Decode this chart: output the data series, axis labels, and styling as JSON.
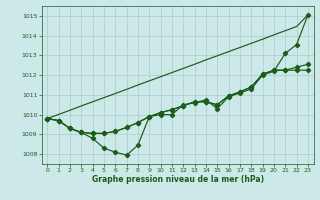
{
  "xlabel": "Graphe pression niveau de la mer (hPa)",
  "bg_color": "#cce8e8",
  "grid_color": "#aacccc",
  "line_color": "#1a5c1a",
  "ylim": [
    1007.5,
    1015.5
  ],
  "xlim": [
    -0.5,
    23.5
  ],
  "yticks": [
    1008,
    1009,
    1010,
    1011,
    1012,
    1013,
    1014,
    1015
  ],
  "xticks": [
    0,
    1,
    2,
    3,
    4,
    5,
    6,
    7,
    8,
    9,
    10,
    11,
    12,
    13,
    14,
    15,
    16,
    17,
    18,
    19,
    20,
    21,
    22,
    23
  ],
  "series_min": [
    1009.8,
    1009.7,
    1009.3,
    1009.1,
    1008.8,
    1008.3,
    1008.1,
    1007.95,
    1008.45,
    1009.9,
    1010.0,
    1010.0,
    1010.5,
    1010.6,
    1010.75,
    1010.3,
    1010.9,
    1011.1,
    1011.3,
    1012.0,
    1012.2,
    1013.1,
    1013.55,
    1015.05
  ],
  "series_max": [
    1009.8,
    1009.7,
    1009.3,
    1009.1,
    1009.05,
    1009.05,
    1009.15,
    1009.35,
    1009.6,
    1009.9,
    1010.1,
    1010.25,
    1010.45,
    1010.65,
    1010.65,
    1010.5,
    1010.95,
    1011.15,
    1011.4,
    1012.05,
    1012.25,
    1012.25,
    1012.4,
    1012.55
  ],
  "series_mean": [
    1009.8,
    1009.7,
    1009.3,
    1009.1,
    1009.05,
    1009.05,
    1009.15,
    1009.35,
    1009.6,
    1009.9,
    1010.1,
    1010.25,
    1010.45,
    1010.65,
    1010.65,
    1010.5,
    1010.95,
    1011.15,
    1011.4,
    1012.05,
    1012.25,
    1012.25,
    1012.25,
    1012.25
  ],
  "series_straight": [
    1009.8,
    1010.01,
    1010.22,
    1010.44,
    1010.65,
    1010.86,
    1011.07,
    1011.28,
    1011.5,
    1011.71,
    1011.92,
    1012.13,
    1012.34,
    1012.55,
    1012.77,
    1012.98,
    1013.19,
    1013.4,
    1013.61,
    1013.82,
    1014.04,
    1014.25,
    1014.46,
    1015.05
  ]
}
